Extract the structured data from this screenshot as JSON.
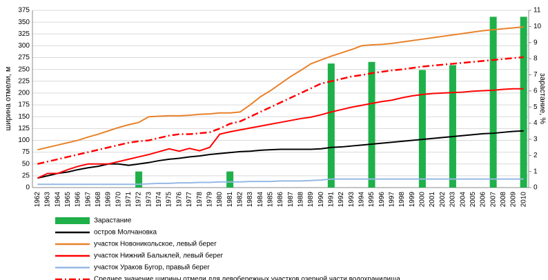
{
  "chart_data": {
    "type": "combo",
    "ylabel": "ширина отмели, м",
    "y2label": "зарастание, %",
    "categories": [
      "1962",
      "1963",
      "1964",
      "1965",
      "1966",
      "1967",
      "1968",
      "1969",
      "1970",
      "1971",
      "1972",
      "1973",
      "1974",
      "1975",
      "1976",
      "1977",
      "1978",
      "1979",
      "1980",
      "1981",
      "1982",
      "1983",
      "1984",
      "1985",
      "1986",
      "1987",
      "1988",
      "1989",
      "1990",
      "1991",
      "1992",
      "1993",
      "1994",
      "1995",
      "1996",
      "1997",
      "1998",
      "1999",
      "2000",
      "2001",
      "2002",
      "2003",
      "2004",
      "2005",
      "2006",
      "2007",
      "2008",
      "2009",
      "2010"
    ],
    "ylim": [
      0,
      375
    ],
    "yticks": [
      0,
      25,
      50,
      75,
      100,
      125,
      150,
      175,
      200,
      225,
      250,
      275,
      300,
      325,
      350,
      375
    ],
    "y2lim": [
      0,
      11
    ],
    "y2ticks": [
      0,
      1,
      2,
      3,
      4,
      5,
      6,
      7,
      8,
      9,
      10,
      11
    ],
    "grid": true,
    "series": [
      {
        "name": "Зарастание",
        "kind": "bar",
        "axis": "y2",
        "color": "#1fb04a",
        "values": [
          null,
          null,
          null,
          null,
          null,
          null,
          null,
          null,
          null,
          null,
          1,
          null,
          null,
          null,
          null,
          null,
          null,
          null,
          null,
          1,
          null,
          null,
          null,
          null,
          null,
          null,
          null,
          null,
          null,
          7.7,
          null,
          null,
          null,
          7.8,
          null,
          null,
          null,
          null,
          7.3,
          null,
          null,
          7.6,
          null,
          null,
          null,
          10.6,
          null,
          null,
          10.6
        ]
      },
      {
        "name": "остров Молчановка",
        "kind": "line",
        "color": "#000000",
        "dash": "solid",
        "values": [
          20,
          25,
          30,
          33,
          38,
          42,
          45,
          50,
          50,
          47,
          50,
          53,
          57,
          60,
          62,
          65,
          67,
          70,
          72,
          74,
          76,
          77,
          79,
          80,
          81,
          81,
          81,
          81,
          82,
          85,
          86,
          88,
          90,
          92,
          94,
          96,
          98,
          100,
          102,
          104,
          106,
          108,
          110,
          112,
          114,
          115,
          117,
          119,
          120
        ]
      },
      {
        "name": "участок Новоникольское, левый берег",
        "kind": "line",
        "color": "#e8822a",
        "dash": "solid",
        "values": [
          80,
          85,
          90,
          95,
          100,
          107,
          113,
          120,
          127,
          133,
          138,
          150,
          151,
          152,
          152,
          153,
          155,
          156,
          158,
          158,
          160,
          175,
          192,
          205,
          220,
          235,
          248,
          262,
          270,
          278,
          285,
          292,
          300,
          302,
          303,
          305,
          308,
          311,
          314,
          317,
          320,
          323,
          326,
          329,
          332,
          334,
          336,
          338,
          340
        ]
      },
      {
        "name": "участок Нижний Балыклей, левый берег",
        "kind": "line",
        "color": "#ff0000",
        "dash": "solid",
        "values": [
          20,
          30,
          30,
          38,
          45,
          50,
          50,
          50,
          55,
          60,
          65,
          70,
          76,
          82,
          77,
          83,
          78,
          85,
          113,
          118,
          122,
          126,
          130,
          134,
          138,
          142,
          146,
          149,
          154,
          160,
          165,
          170,
          174,
          178,
          182,
          185,
          190,
          194,
          197,
          199,
          200,
          201,
          202,
          204,
          205,
          206,
          208,
          209,
          209
        ]
      },
      {
        "name": "участок Ураков Бугор, правый берег",
        "kind": "line",
        "color": "#95b8e3",
        "dash": "solid",
        "values": [
          7,
          7,
          7,
          7,
          7,
          7,
          7,
          7,
          7,
          7,
          7,
          8,
          9,
          9,
          10,
          10,
          11,
          11,
          12,
          12,
          12,
          13,
          13,
          13,
          14,
          14,
          14,
          15,
          16,
          18,
          18,
          18,
          18,
          18,
          18,
          18,
          18,
          18,
          18,
          18,
          18,
          18,
          18,
          18,
          18,
          18,
          18,
          18,
          18
        ]
      },
      {
        "name": "Среднее значение ширины отмели для левобережных участков озерной части водохранилища",
        "kind": "line",
        "color": "#ff0000",
        "dash": "dashdot",
        "values": [
          50,
          55,
          60,
          65,
          70,
          75,
          80,
          85,
          90,
          95,
          98,
          100,
          105,
          110,
          113,
          113,
          115,
          117,
          125,
          135,
          140,
          150,
          160,
          170,
          180,
          190,
          200,
          210,
          220,
          225,
          230,
          235,
          238,
          242,
          245,
          248,
          250,
          253,
          256,
          258,
          260,
          262,
          264,
          266,
          268,
          270,
          272,
          274,
          276
        ]
      }
    ]
  }
}
